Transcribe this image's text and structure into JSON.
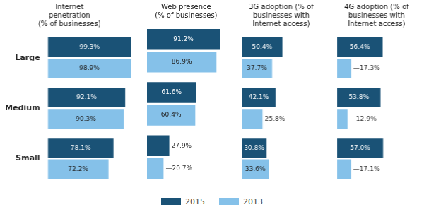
{
  "chart_data": [
    {
      "type": "bar",
      "orientation": "horizontal",
      "title": "Internet\npenetration\n(% of businesses)",
      "categories": [
        "Large",
        "Medium",
        "Small"
      ],
      "series": [
        {
          "name": "2015",
          "color": "#1a5276",
          "values": [
            99.3,
            92.1,
            78.1
          ],
          "value_labels": [
            "99.3%",
            "92.1%",
            "78.1%"
          ]
        },
        {
          "name": "2013",
          "color": "#85c1e9",
          "values": [
            98.9,
            90.3,
            72.2
          ],
          "value_labels": [
            "98.9%",
            "90.3%",
            "72.2%"
          ]
        }
      ],
      "xlim": [
        0,
        105
      ],
      "grid": false,
      "data_labels": true,
      "tick_labels": "y",
      "legend": "bottom"
    },
    {
      "type": "bar",
      "orientation": "horizontal",
      "title": "Web presence\n(% of businesses)",
      "categories": [
        "Large",
        "Medium",
        "Small"
      ],
      "series": [
        {
          "name": "2015",
          "color": "#1a5276",
          "values": [
            91.2,
            61.6,
            27.9
          ],
          "value_labels": [
            "91.2%",
            "61.6%",
            "27.9%"
          ]
        },
        {
          "name": "2013",
          "color": "#85c1e9",
          "values": [
            86.9,
            60.4,
            20.7
          ],
          "value_labels": [
            "86.9%",
            "60.4%",
            "—20.7%"
          ]
        }
      ],
      "xlim": [
        0,
        105
      ],
      "grid": false,
      "data_labels": true,
      "tick_labels": false
    },
    {
      "type": "bar",
      "orientation": "horizontal",
      "title": "3G adoption (% of\nbusinesses with\nInternet access)",
      "categories": [
        "Large",
        "Medium",
        "Small"
      ],
      "series": [
        {
          "name": "2015",
          "color": "#1a5276",
          "values": [
            50.4,
            42.1,
            30.8
          ],
          "value_labels": [
            "50.4%",
            "42.1%",
            "30.8%"
          ]
        },
        {
          "name": "2013",
          "color": "#85c1e9",
          "values": [
            37.7,
            25.8,
            33.6
          ],
          "value_labels": [
            "37.7%",
            "25.8%",
            "33.6%"
          ]
        }
      ],
      "xlim": [
        0,
        105
      ],
      "grid": false,
      "data_labels": true,
      "tick_labels": false
    },
    {
      "type": "bar",
      "orientation": "horizontal",
      "title": "4G adoption (% of\nbusinesses with\nInternet access)",
      "categories": [
        "Large",
        "Medium",
        "Small"
      ],
      "series": [
        {
          "name": "2015",
          "color": "#1a5276",
          "values": [
            56.4,
            53.8,
            57.0
          ],
          "value_labels": [
            "56.4%",
            "53.8%",
            "57.0%"
          ]
        },
        {
          "name": "2013",
          "color": "#85c1e9",
          "values": [
            17.3,
            12.9,
            17.1
          ],
          "value_labels": [
            "—17.3%",
            "—12.9%",
            "—17.1%"
          ]
        }
      ],
      "xlim": [
        0,
        105
      ],
      "grid": false,
      "data_labels": true,
      "tick_labels": false
    }
  ]
}
